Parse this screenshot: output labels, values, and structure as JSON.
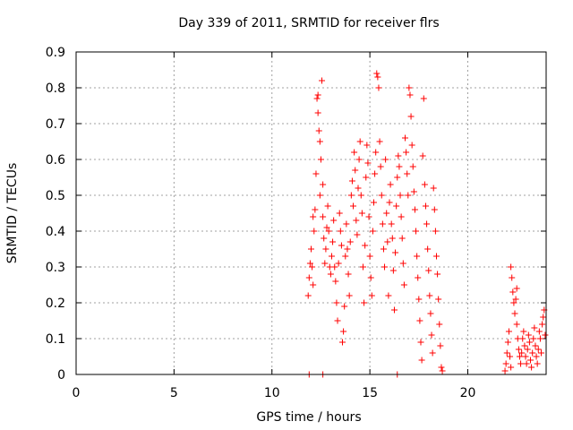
{
  "chart_data": {
    "type": "scatter",
    "title": "Day 339 of 2011, SRMTID for receiver flrs",
    "xlabel": "GPS time / hours",
    "ylabel": "SRMTID / TECUs",
    "xlim": [
      0,
      24
    ],
    "ylim": [
      0,
      0.9
    ],
    "xticks": [
      "0",
      "5",
      "10",
      "15",
      "20"
    ],
    "yticks": [
      "0",
      "0.1",
      "0.2",
      "0.3",
      "0.4",
      "0.5",
      "0.6",
      "0.7",
      "0.8",
      "0.9"
    ],
    "grid": true,
    "marker": "plus",
    "color": "#ff0000",
    "series": [
      {
        "name": "SRMTID",
        "points": [
          [
            11.9,
            0.0
          ],
          [
            12.6,
            0.0
          ],
          [
            16.4,
            0.0
          ],
          [
            11.85,
            0.22
          ],
          [
            11.9,
            0.27
          ],
          [
            11.95,
            0.31
          ],
          [
            12.0,
            0.35
          ],
          [
            12.05,
            0.3
          ],
          [
            12.1,
            0.25
          ],
          [
            12.1,
            0.44
          ],
          [
            12.15,
            0.4
          ],
          [
            12.2,
            0.46
          ],
          [
            12.25,
            0.56
          ],
          [
            12.3,
            0.77
          ],
          [
            12.35,
            0.78
          ],
          [
            12.35,
            0.73
          ],
          [
            12.4,
            0.68
          ],
          [
            12.45,
            0.65
          ],
          [
            12.45,
            0.5
          ],
          [
            12.5,
            0.6
          ],
          [
            12.55,
            0.82
          ],
          [
            12.6,
            0.53
          ],
          [
            12.6,
            0.44
          ],
          [
            12.65,
            0.38
          ],
          [
            12.7,
            0.31
          ],
          [
            12.75,
            0.35
          ],
          [
            12.8,
            0.41
          ],
          [
            12.85,
            0.47
          ],
          [
            12.9,
            0.4
          ],
          [
            12.95,
            0.3
          ],
          [
            13.0,
            0.28
          ],
          [
            13.05,
            0.33
          ],
          [
            13.1,
            0.37
          ],
          [
            13.15,
            0.43
          ],
          [
            13.2,
            0.3
          ],
          [
            13.25,
            0.26
          ],
          [
            13.3,
            0.2
          ],
          [
            13.35,
            0.15
          ],
          [
            13.4,
            0.31
          ],
          [
            13.45,
            0.45
          ],
          [
            13.5,
            0.4
          ],
          [
            13.55,
            0.36
          ],
          [
            13.6,
            0.09
          ],
          [
            13.65,
            0.12
          ],
          [
            13.7,
            0.19
          ],
          [
            13.75,
            0.33
          ],
          [
            13.8,
            0.42
          ],
          [
            13.85,
            0.35
          ],
          [
            13.9,
            0.28
          ],
          [
            13.95,
            0.22
          ],
          [
            14.0,
            0.37
          ],
          [
            14.05,
            0.5
          ],
          [
            14.1,
            0.54
          ],
          [
            14.15,
            0.47
          ],
          [
            14.2,
            0.62
          ],
          [
            14.25,
            0.57
          ],
          [
            14.3,
            0.43
          ],
          [
            14.35,
            0.39
          ],
          [
            14.4,
            0.52
          ],
          [
            14.45,
            0.6
          ],
          [
            14.5,
            0.65
          ],
          [
            14.55,
            0.5
          ],
          [
            14.6,
            0.45
          ],
          [
            14.65,
            0.3
          ],
          [
            14.7,
            0.2
          ],
          [
            14.75,
            0.36
          ],
          [
            14.8,
            0.55
          ],
          [
            14.85,
            0.64
          ],
          [
            14.9,
            0.59
          ],
          [
            14.95,
            0.44
          ],
          [
            15.0,
            0.33
          ],
          [
            15.05,
            0.27
          ],
          [
            15.1,
            0.22
          ],
          [
            15.15,
            0.4
          ],
          [
            15.2,
            0.48
          ],
          [
            15.25,
            0.56
          ],
          [
            15.3,
            0.62
          ],
          [
            15.35,
            0.84
          ],
          [
            15.4,
            0.83
          ],
          [
            15.45,
            0.8
          ],
          [
            15.5,
            0.65
          ],
          [
            15.55,
            0.58
          ],
          [
            15.6,
            0.5
          ],
          [
            15.65,
            0.42
          ],
          [
            15.7,
            0.35
          ],
          [
            15.75,
            0.3
          ],
          [
            15.8,
            0.6
          ],
          [
            15.85,
            0.45
          ],
          [
            15.9,
            0.37
          ],
          [
            15.95,
            0.22
          ],
          [
            16.0,
            0.48
          ],
          [
            16.05,
            0.53
          ],
          [
            16.1,
            0.42
          ],
          [
            16.15,
            0.38
          ],
          [
            16.2,
            0.29
          ],
          [
            16.25,
            0.18
          ],
          [
            16.3,
            0.34
          ],
          [
            16.35,
            0.47
          ],
          [
            16.4,
            0.55
          ],
          [
            16.45,
            0.61
          ],
          [
            16.5,
            0.58
          ],
          [
            16.55,
            0.5
          ],
          [
            16.6,
            0.44
          ],
          [
            16.65,
            0.38
          ],
          [
            16.7,
            0.31
          ],
          [
            16.75,
            0.25
          ],
          [
            16.8,
            0.66
          ],
          [
            16.85,
            0.62
          ],
          [
            16.9,
            0.56
          ],
          [
            16.95,
            0.5
          ],
          [
            17.0,
            0.8
          ],
          [
            17.05,
            0.78
          ],
          [
            17.1,
            0.72
          ],
          [
            17.15,
            0.64
          ],
          [
            17.2,
            0.58
          ],
          [
            17.25,
            0.51
          ],
          [
            17.3,
            0.46
          ],
          [
            17.35,
            0.4
          ],
          [
            17.4,
            0.33
          ],
          [
            17.45,
            0.27
          ],
          [
            17.5,
            0.21
          ],
          [
            17.55,
            0.15
          ],
          [
            17.6,
            0.09
          ],
          [
            17.65,
            0.04
          ],
          [
            17.7,
            0.61
          ],
          [
            17.75,
            0.77
          ],
          [
            17.8,
            0.53
          ],
          [
            17.85,
            0.47
          ],
          [
            17.9,
            0.42
          ],
          [
            17.95,
            0.35
          ],
          [
            18.0,
            0.29
          ],
          [
            18.05,
            0.22
          ],
          [
            18.1,
            0.17
          ],
          [
            18.15,
            0.11
          ],
          [
            18.2,
            0.06
          ],
          [
            18.25,
            0.52
          ],
          [
            18.3,
            0.46
          ],
          [
            18.35,
            0.4
          ],
          [
            18.4,
            0.33
          ],
          [
            18.45,
            0.28
          ],
          [
            18.5,
            0.21
          ],
          [
            18.55,
            0.14
          ],
          [
            18.6,
            0.08
          ],
          [
            18.65,
            0.02
          ],
          [
            18.7,
            0.01
          ],
          [
            21.9,
            0.01
          ],
          [
            21.95,
            0.03
          ],
          [
            22.0,
            0.06
          ],
          [
            22.05,
            0.09
          ],
          [
            22.1,
            0.12
          ],
          [
            22.15,
            0.05
          ],
          [
            22.2,
            0.02
          ],
          [
            22.2,
            0.3
          ],
          [
            22.25,
            0.27
          ],
          [
            22.3,
            0.23
          ],
          [
            22.35,
            0.2
          ],
          [
            22.4,
            0.17
          ],
          [
            22.45,
            0.21
          ],
          [
            22.5,
            0.24
          ],
          [
            22.5,
            0.14
          ],
          [
            22.55,
            0.1
          ],
          [
            22.6,
            0.07
          ],
          [
            22.65,
            0.05
          ],
          [
            22.7,
            0.03
          ],
          [
            22.75,
            0.06
          ],
          [
            22.8,
            0.1
          ],
          [
            22.85,
            0.12
          ],
          [
            22.9,
            0.08
          ],
          [
            22.95,
            0.05
          ],
          [
            23.0,
            0.03
          ],
          [
            23.05,
            0.07
          ],
          [
            23.1,
            0.11
          ],
          [
            23.15,
            0.09
          ],
          [
            23.2,
            0.04
          ],
          [
            23.25,
            0.02
          ],
          [
            23.3,
            0.06
          ],
          [
            23.35,
            0.1
          ],
          [
            23.4,
            0.13
          ],
          [
            23.45,
            0.08
          ],
          [
            23.5,
            0.05
          ],
          [
            23.55,
            0.03
          ],
          [
            23.6,
            0.07
          ],
          [
            23.65,
            0.12
          ],
          [
            23.7,
            0.1
          ],
          [
            23.75,
            0.06
          ],
          [
            23.8,
            0.14
          ],
          [
            23.85,
            0.16
          ],
          [
            23.9,
            0.18
          ],
          [
            23.95,
            0.11
          ]
        ]
      }
    ]
  }
}
